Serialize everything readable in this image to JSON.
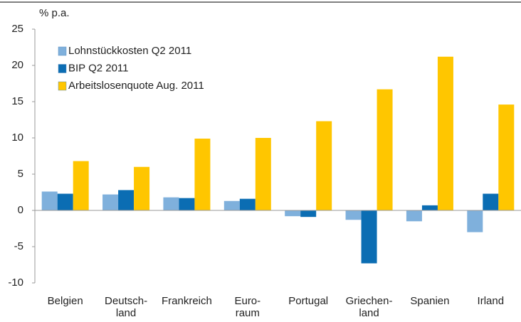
{
  "chart_data": {
    "type": "bar",
    "y_label": "% p.a.",
    "categories": [
      "Belgien",
      "Deutsch-\nland",
      "Frankreich",
      "Euro-\nraum",
      "Portugal",
      "Griechen-\nland",
      "Spanien",
      "Irland"
    ],
    "series": [
      {
        "name": "Lohnstückkosten Q2 2011",
        "color": "#7fb0dc",
        "values": [
          2.6,
          2.2,
          1.8,
          1.3,
          -0.8,
          -1.3,
          -1.5,
          -3.0
        ]
      },
      {
        "name": "BIP Q2 2011",
        "color": "#0b6db3",
        "values": [
          2.3,
          2.8,
          1.7,
          1.6,
          -0.9,
          -7.3,
          0.7,
          2.3
        ]
      },
      {
        "name": "Arbeitslosenquote Aug. 2011",
        "color": "#ffc600",
        "values": [
          6.8,
          6.0,
          9.9,
          10.0,
          12.3,
          16.7,
          21.2,
          14.6
        ]
      }
    ],
    "ylim": [
      -10,
      25
    ],
    "yticks": [
      -10,
      -5,
      0,
      5,
      10,
      15,
      20,
      25
    ],
    "legend": "upper left"
  }
}
